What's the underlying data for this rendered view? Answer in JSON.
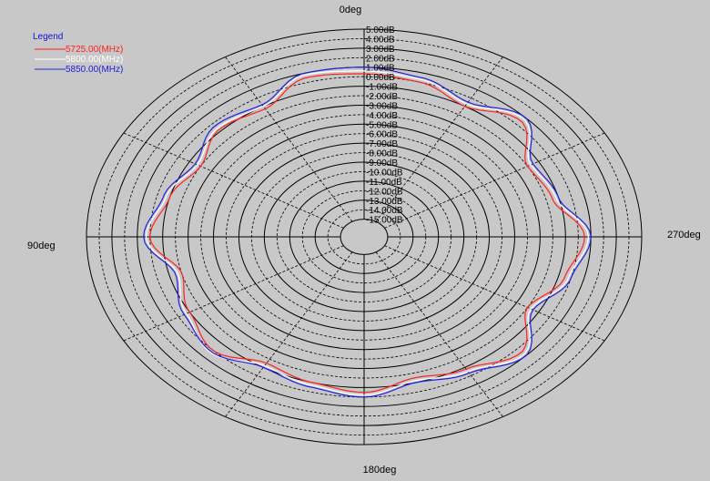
{
  "chart_data": {
    "type": "line",
    "subtype": "polar-radiation-pattern",
    "angle_labels": {
      "top": "0deg",
      "left": "90deg",
      "bottom": "180deg",
      "right": "270deg"
    },
    "radial_unit": "dB",
    "radial_range": [
      -15,
      5
    ],
    "radial_tick_labels": [
      "5.00dB",
      "4.00dB",
      "3.00dB",
      "2.00dB",
      "1.00dB",
      "0.00dB",
      "-1.00dB",
      "-2.00dB",
      "-3.00dB",
      "-4.00dB",
      "-5.00dB",
      "-6.00dB",
      "-7.00dB",
      "-8.00dB",
      "-9.00dB",
      "-10.00dB",
      "-11.00dB",
      "-12.00dB",
      "-13.00dB",
      "-14.00dB",
      "-15.00dB"
    ],
    "grid": true,
    "legend": {
      "title": "Legend",
      "placement": "top-left"
    },
    "angles_deg": [
      0,
      15,
      30,
      45,
      60,
      75,
      90,
      105,
      120,
      135,
      150,
      165,
      180,
      195,
      210,
      225,
      240,
      255,
      270,
      285,
      300,
      315,
      330,
      345
    ],
    "series": [
      {
        "name": "5725.00(MHz)",
        "color": "#ff2020",
        "values_db": [
          0.3,
          0.5,
          -1.3,
          -0.8,
          -2.0,
          -1.0,
          0.0,
          -2.0,
          -1.0,
          0.0,
          -1.5,
          -1.0,
          -0.5,
          -1.5,
          -0.8,
          0.5,
          -2.0,
          -0.5,
          0.5,
          -1.5,
          -2.0,
          0.5,
          -1.0,
          0.0
        ]
      },
      {
        "name": "5800.00(MHz)",
        "color": "#ffffff",
        "values_db": [
          0.6,
          0.8,
          -1.0,
          -0.6,
          -1.7,
          -0.7,
          0.3,
          -1.7,
          -0.7,
          0.3,
          -1.2,
          -0.7,
          -0.2,
          -1.2,
          -0.5,
          0.8,
          -1.7,
          -0.2,
          0.8,
          -1.2,
          -1.7,
          0.8,
          -0.7,
          0.3
        ]
      },
      {
        "name": "5850.00(MHz)",
        "color": "#2020e0",
        "values_db": [
          1.0,
          1.0,
          -0.8,
          -0.3,
          -1.5,
          -0.5,
          0.5,
          -1.5,
          -0.5,
          0.2,
          -1.0,
          -0.5,
          0.0,
          -1.0,
          -0.3,
          1.0,
          -1.5,
          0.0,
          1.0,
          -1.0,
          -1.5,
          1.0,
          -0.5,
          0.5
        ]
      }
    ]
  }
}
